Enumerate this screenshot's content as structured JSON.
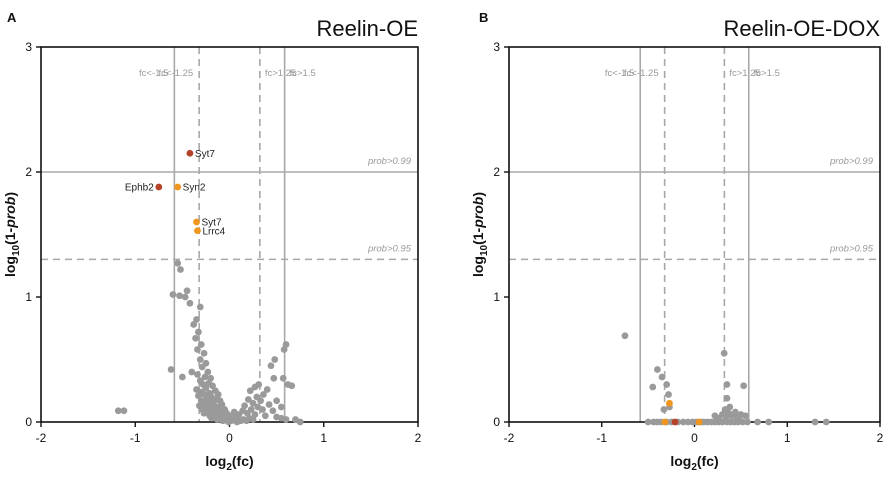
{
  "colors": {
    "background_points": "#9a9a9a",
    "highlight_dark": "#b5432a",
    "highlight_orange": "#f0961e",
    "threshold_line": "#a8a8a8",
    "axis": "#111111"
  },
  "chart_data": [
    {
      "type": "scatter",
      "panel_letter": "A",
      "title": "Reelin-OE",
      "xlabel": {
        "base": "log",
        "sub": "2",
        "rest": "(fc)"
      },
      "ylabel": {
        "base": "log",
        "sub": "10",
        "rest": "(1-",
        "italic": "prob",
        "close": ")"
      },
      "xlim": [
        -2,
        2
      ],
      "ylim": [
        0,
        3
      ],
      "xticks": [
        -2,
        -1,
        0,
        1,
        2
      ],
      "yticks": [
        0,
        1,
        2,
        3
      ],
      "vlines": [
        {
          "x": -0.585,
          "style": "solid",
          "label": "fc<-1.5"
        },
        {
          "x": -0.322,
          "style": "dashed",
          "label": "fc<-1.25"
        },
        {
          "x": 0.322,
          "style": "dashed",
          "label": "fc>1.25"
        },
        {
          "x": 0.585,
          "style": "solid",
          "label": "fc>1.5"
        }
      ],
      "hlines": [
        {
          "y": 2.0,
          "style": "solid",
          "label": "prob>0.99"
        },
        {
          "y": 1.301,
          "style": "dashed",
          "label": "prob>0.95"
        }
      ],
      "highlighted": [
        {
          "x": -0.42,
          "y": 2.15,
          "color": "dark",
          "label": "Syt7",
          "label_side": "right"
        },
        {
          "x": -0.75,
          "y": 1.88,
          "color": "dark",
          "label": "Ephb2",
          "label_side": "left"
        },
        {
          "x": -0.55,
          "y": 1.88,
          "color": "orange",
          "label": "Syn2",
          "label_side": "right"
        },
        {
          "x": -0.35,
          "y": 1.6,
          "color": "orange",
          "label": "Syt7",
          "label_side": "right"
        },
        {
          "x": -0.34,
          "y": 1.53,
          "color": "orange",
          "label": "Lrrc4",
          "label_side": "right"
        }
      ],
      "points": [
        [
          -1.18,
          0.09
        ],
        [
          -1.12,
          0.09
        ],
        [
          -0.55,
          1.27
        ],
        [
          -0.52,
          1.22
        ],
        [
          -0.6,
          1.02
        ],
        [
          -0.53,
          1.01
        ],
        [
          -0.47,
          1.0
        ],
        [
          -0.45,
          1.05
        ],
        [
          -0.42,
          0.95
        ],
        [
          -0.35,
          0.82
        ],
        [
          -0.31,
          0.92
        ],
        [
          -0.38,
          0.78
        ],
        [
          -0.33,
          0.72
        ],
        [
          -0.36,
          0.67
        ],
        [
          -0.3,
          0.62
        ],
        [
          -0.34,
          0.58
        ],
        [
          -0.27,
          0.55
        ],
        [
          -0.31,
          0.5
        ],
        [
          -0.25,
          0.47
        ],
        [
          -0.29,
          0.44
        ],
        [
          -0.62,
          0.42
        ],
        [
          -0.5,
          0.36
        ],
        [
          -0.4,
          0.4
        ],
        [
          -0.23,
          0.4
        ],
        [
          -0.34,
          0.38
        ],
        [
          -0.26,
          0.36
        ],
        [
          -0.2,
          0.35
        ],
        [
          -0.31,
          0.33
        ],
        [
          -0.22,
          0.31
        ],
        [
          -0.28,
          0.3
        ],
        [
          -0.18,
          0.29
        ],
        [
          -0.25,
          0.27
        ],
        [
          -0.35,
          0.26
        ],
        [
          -0.15,
          0.25
        ],
        [
          -0.3,
          0.24
        ],
        [
          -0.21,
          0.23
        ],
        [
          -0.27,
          0.22
        ],
        [
          -0.12,
          0.22
        ],
        [
          -0.33,
          0.21
        ],
        [
          -0.19,
          0.2
        ],
        [
          -0.24,
          0.19
        ],
        [
          -0.14,
          0.18
        ],
        [
          -0.3,
          0.17
        ],
        [
          -0.1,
          0.17
        ],
        [
          -0.22,
          0.16
        ],
        [
          -0.27,
          0.15
        ],
        [
          -0.17,
          0.15
        ],
        [
          -0.08,
          0.14
        ],
        [
          -0.32,
          0.13
        ],
        [
          -0.2,
          0.13
        ],
        [
          -0.12,
          0.12
        ],
        [
          -0.25,
          0.11
        ],
        [
          -0.15,
          0.11
        ],
        [
          -0.05,
          0.1
        ],
        [
          -0.29,
          0.1
        ],
        [
          -0.19,
          0.09
        ],
        [
          -0.1,
          0.09
        ],
        [
          -0.23,
          0.08
        ],
        [
          -0.13,
          0.08
        ],
        [
          -0.03,
          0.07
        ],
        [
          -0.27,
          0.07
        ],
        [
          -0.17,
          0.06
        ],
        [
          -0.07,
          0.06
        ],
        [
          -0.21,
          0.05
        ],
        [
          -0.11,
          0.05
        ],
        [
          0.0,
          0.05
        ],
        [
          -0.15,
          0.04
        ],
        [
          -0.05,
          0.04
        ],
        [
          0.03,
          0.04
        ],
        [
          -0.19,
          0.03
        ],
        [
          -0.09,
          0.03
        ],
        [
          0.06,
          0.03
        ],
        [
          -0.13,
          0.02
        ],
        [
          -0.02,
          0.02
        ],
        [
          0.09,
          0.02
        ],
        [
          -0.07,
          0.01
        ],
        [
          0.12,
          0.01
        ],
        [
          0.02,
          0.01
        ],
        [
          0.15,
          0.02
        ],
        [
          0.18,
          0.01
        ],
        [
          0.21,
          0.03
        ],
        [
          0.08,
          0.0
        ],
        [
          -0.01,
          0.0
        ],
        [
          0.25,
          0.02
        ],
        [
          0.05,
          0.08
        ],
        [
          0.1,
          0.06
        ],
        [
          0.14,
          0.09
        ],
        [
          0.19,
          0.07
        ],
        [
          0.23,
          0.1
        ],
        [
          0.27,
          0.06
        ],
        [
          0.3,
          0.12
        ],
        [
          0.16,
          0.13
        ],
        [
          0.2,
          0.18
        ],
        [
          0.25,
          0.15
        ],
        [
          0.29,
          0.2
        ],
        [
          0.33,
          0.17
        ],
        [
          0.22,
          0.25
        ],
        [
          0.27,
          0.28
        ],
        [
          0.31,
          0.3
        ],
        [
          0.36,
          0.22
        ],
        [
          0.4,
          0.26
        ],
        [
          0.35,
          0.1
        ],
        [
          0.42,
          0.14
        ],
        [
          0.38,
          0.05
        ],
        [
          0.46,
          0.09
        ],
        [
          0.5,
          0.04
        ],
        [
          0.55,
          0.03
        ],
        [
          0.6,
          0.02
        ],
        [
          0.47,
          0.35
        ],
        [
          0.5,
          0.17
        ],
        [
          0.55,
          0.12
        ],
        [
          0.58,
          0.58
        ],
        [
          0.6,
          0.62
        ],
        [
          0.57,
          0.35
        ],
        [
          0.62,
          0.3
        ],
        [
          0.66,
          0.29
        ],
        [
          0.44,
          0.45
        ],
        [
          0.48,
          0.5
        ],
        [
          0.7,
          0.02
        ],
        [
          0.75,
          0.0
        ]
      ]
    },
    {
      "type": "scatter",
      "panel_letter": "B",
      "title": "Reelin-OE-DOX",
      "xlabel": {
        "base": "log",
        "sub": "2",
        "rest": "(fc)"
      },
      "ylabel": {
        "base": "log",
        "sub": "10",
        "rest": "(1-",
        "italic": "prob",
        "close": ")"
      },
      "xlim": [
        -2,
        2
      ],
      "ylim": [
        0,
        3
      ],
      "xticks": [
        -2,
        -1,
        0,
        1,
        2
      ],
      "yticks": [
        0,
        1,
        2,
        3
      ],
      "vlines": [
        {
          "x": -0.585,
          "style": "solid",
          "label": "fc<-1.5"
        },
        {
          "x": -0.322,
          "style": "dashed",
          "label": "fc<-1.25"
        },
        {
          "x": 0.322,
          "style": "dashed",
          "label": "fc>1.25"
        },
        {
          "x": 0.585,
          "style": "solid",
          "label": "fc>1.5"
        }
      ],
      "hlines": [
        {
          "y": 2.0,
          "style": "solid",
          "label": "prob>0.99"
        },
        {
          "y": 1.301,
          "style": "dashed",
          "label": "prob>0.95"
        }
      ],
      "highlighted": [
        {
          "x": -0.27,
          "y": 0.15,
          "color": "orange",
          "label": "",
          "label_side": "right"
        },
        {
          "x": -0.21,
          "y": 0.0,
          "color": "dark",
          "label": "",
          "label_side": "right"
        },
        {
          "x": 0.05,
          "y": 0.0,
          "color": "orange",
          "label": "",
          "label_side": "right"
        },
        {
          "x": -0.32,
          "y": 0.0,
          "color": "orange",
          "label": "",
          "label_side": "right"
        }
      ],
      "points": [
        [
          -0.75,
          0.69
        ],
        [
          -0.4,
          0.42
        ],
        [
          -0.35,
          0.36
        ],
        [
          -0.45,
          0.28
        ],
        [
          -0.3,
          0.3
        ],
        [
          -0.28,
          0.22
        ],
        [
          -0.33,
          0.1
        ],
        [
          -0.27,
          0.12
        ],
        [
          -0.5,
          0.0
        ],
        [
          -0.44,
          0.0
        ],
        [
          -0.4,
          0.0
        ],
        [
          -0.36,
          0.0
        ],
        [
          -0.3,
          0.0
        ],
        [
          -0.25,
          0.0
        ],
        [
          -0.18,
          0.0
        ],
        [
          -0.12,
          0.0
        ],
        [
          -0.07,
          0.0
        ],
        [
          -0.02,
          0.0
        ],
        [
          0.02,
          0.0
        ],
        [
          0.07,
          0.0
        ],
        [
          0.1,
          0.0
        ],
        [
          0.14,
          0.0
        ],
        [
          0.18,
          0.0
        ],
        [
          0.22,
          0.0
        ],
        [
          0.26,
          0.0
        ],
        [
          0.3,
          0.0
        ],
        [
          0.35,
          0.0
        ],
        [
          0.39,
          0.0
        ],
        [
          0.43,
          0.0
        ],
        [
          0.47,
          0.0
        ],
        [
          0.52,
          0.0
        ],
        [
          0.57,
          0.0
        ],
        [
          0.22,
          0.05
        ],
        [
          0.26,
          0.03
        ],
        [
          0.3,
          0.06
        ],
        [
          0.34,
          0.04
        ],
        [
          0.37,
          0.07
        ],
        [
          0.4,
          0.05
        ],
        [
          0.44,
          0.08
        ],
        [
          0.48,
          0.03
        ],
        [
          0.33,
          0.1
        ],
        [
          0.38,
          0.12
        ],
        [
          0.35,
          0.19
        ],
        [
          0.43,
          0.06
        ],
        [
          0.46,
          0.02
        ],
        [
          0.5,
          0.06
        ],
        [
          0.55,
          0.05
        ],
        [
          0.32,
          0.55
        ],
        [
          0.35,
          0.3
        ],
        [
          0.53,
          0.29
        ],
        [
          0.8,
          0.0
        ],
        [
          1.3,
          0.0
        ],
        [
          1.42,
          0.0
        ],
        [
          0.68,
          0.0
        ]
      ]
    }
  ]
}
